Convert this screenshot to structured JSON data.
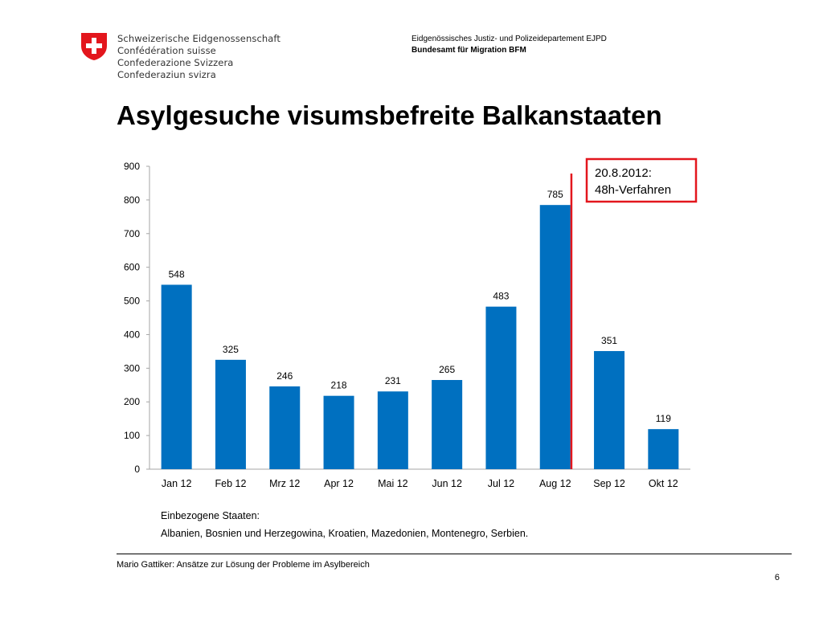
{
  "header": {
    "confederation_names": [
      "Schweizerische Eidgenossenschaft",
      "Confédération suisse",
      "Confederazione Svizzera",
      "Confederaziun svizra"
    ],
    "department": "Eidgenössisches Justiz- und Polizeidepartement EJPD",
    "office": "Bundesamt für Migration BFM"
  },
  "slide": {
    "title": "Asylgesuche visumsbefreite Balkanstaaten"
  },
  "chart_data": {
    "type": "bar",
    "categories": [
      "Jan 12",
      "Feb 12",
      "Mrz 12",
      "Apr 12",
      "Mai 12",
      "Jun 12",
      "Jul 12",
      "Aug 12",
      "Sep 12",
      "Okt 12"
    ],
    "values": [
      548,
      325,
      246,
      218,
      231,
      265,
      483,
      785,
      351,
      119
    ],
    "data_labels": [
      "548",
      "325",
      "246",
      "218",
      "231",
      "265",
      "483",
      "785",
      "351",
      "119"
    ],
    "ylim": [
      0,
      900
    ],
    "yticks": [
      "0",
      "100",
      "200",
      "300",
      "400",
      "500",
      "600",
      "700",
      "800",
      "900"
    ],
    "title": "",
    "xlabel": "",
    "ylabel": "",
    "grid": false,
    "bar_color": "#0070c0",
    "annotation": {
      "line1": "20.8.2012:",
      "line2": "48h-Verfahren",
      "color": "#e3161d"
    }
  },
  "notes": {
    "line1": "Einbezogene Staaten:",
    "line2": "Albanien, Bosnien und Herzegowina, Kroatien, Mazedonien, Montenegro, Serbien."
  },
  "footer": {
    "text": "Mario Gattiker: Ansätze zur Lösung der Probleme im Asylbereich",
    "page_number": "6"
  }
}
